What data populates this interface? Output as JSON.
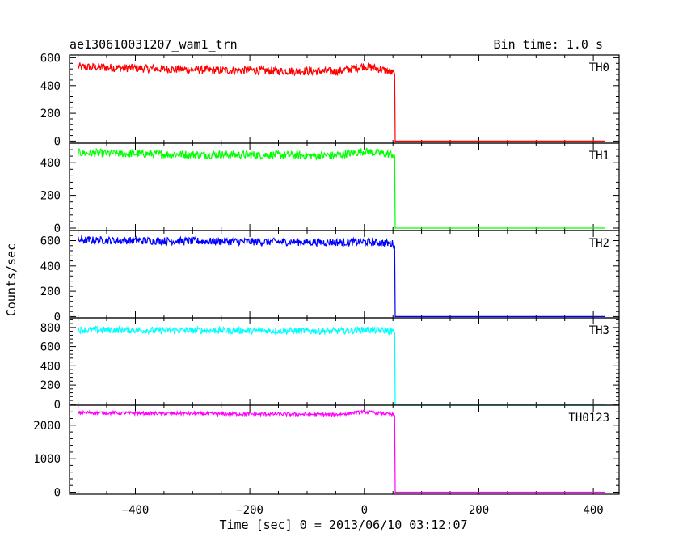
{
  "header": {
    "title": "ae130610031207_wam1_trn",
    "bin_time": "Bin time: 1.0 s"
  },
  "chart_data": {
    "type": "line",
    "xlabel": "Time [sec] 0 = 2013/06/10 03:12:07",
    "ylabel": "Counts/sec",
    "xlim": [
      -515,
      445
    ],
    "x_ticks": [
      -400,
      -200,
      0,
      200,
      400
    ],
    "grid": false,
    "cutoff_x": 53,
    "panels": [
      {
        "name": "TH0",
        "color": "#ff0000",
        "ylim": [
          -15,
          620
        ],
        "y_ticks": [
          0,
          200,
          400,
          600
        ],
        "series_x": [
          -500,
          -450,
          -400,
          -350,
          -300,
          -250,
          -200,
          -150,
          -100,
          -50,
          0,
          20,
          40,
          50,
          53,
          54,
          60,
          100,
          200,
          300,
          420
        ],
        "series_y": [
          535,
          530,
          525,
          520,
          515,
          510,
          510,
          505,
          505,
          500,
          540,
          525,
          505,
          490,
          480,
          0,
          0,
          0,
          0,
          0,
          0
        ],
        "noise": 30
      },
      {
        "name": "TH1",
        "color": "#00ff00",
        "ylim": [
          -15,
          520
        ],
        "y_ticks": [
          0,
          200,
          400
        ],
        "series_x": [
          -500,
          -450,
          -400,
          -350,
          -300,
          -250,
          -200,
          -150,
          -100,
          -50,
          0,
          20,
          40,
          50,
          53,
          54,
          60,
          100,
          200,
          300,
          420
        ],
        "series_y": [
          460,
          458,
          455,
          452,
          450,
          450,
          448,
          447,
          445,
          445,
          470,
          460,
          455,
          450,
          440,
          0,
          0,
          0,
          0,
          0,
          0
        ],
        "noise": 25
      },
      {
        "name": "TH2",
        "color": "#0000ff",
        "ylim": [
          -10,
          680
        ],
        "y_ticks": [
          0,
          200,
          400,
          600
        ],
        "series_x": [
          -500,
          -450,
          -400,
          -350,
          -300,
          -250,
          -200,
          -150,
          -100,
          -50,
          0,
          20,
          40,
          50,
          53,
          54,
          60,
          100,
          200,
          300,
          420
        ],
        "series_y": [
          605,
          602,
          600,
          598,
          596,
          594,
          592,
          590,
          588,
          586,
          590,
          585,
          580,
          575,
          560,
          0,
          0,
          0,
          0,
          0,
          0
        ],
        "noise": 30
      },
      {
        "name": "TH3",
        "color": "#00ffff",
        "ylim": [
          -10,
          900
        ],
        "y_ticks": [
          0,
          200,
          400,
          600,
          800
        ],
        "series_x": [
          -500,
          -450,
          -400,
          -350,
          -300,
          -250,
          -200,
          -150,
          -100,
          -50,
          0,
          20,
          40,
          50,
          53,
          54,
          60,
          100,
          200,
          300,
          420
        ],
        "series_y": [
          775,
          775,
          772,
          770,
          770,
          768,
          766,
          765,
          764,
          762,
          775,
          770,
          765,
          760,
          745,
          0,
          0,
          0,
          0,
          0,
          0
        ],
        "noise": 35
      },
      {
        "name": "TH0123",
        "color": "#ff00ff",
        "ylim": [
          -60,
          2600
        ],
        "y_ticks": [
          0,
          1000,
          2000
        ],
        "series_x": [
          -500,
          -450,
          -400,
          -350,
          -300,
          -250,
          -200,
          -150,
          -100,
          -50,
          0,
          20,
          40,
          50,
          53,
          54,
          60,
          100,
          200,
          300,
          420
        ],
        "series_y": [
          2380,
          2370,
          2360,
          2355,
          2350,
          2340,
          2335,
          2330,
          2325,
          2320,
          2400,
          2370,
          2340,
          2310,
          2280,
          0,
          0,
          0,
          0,
          0,
          0
        ],
        "noise": 50
      }
    ]
  }
}
